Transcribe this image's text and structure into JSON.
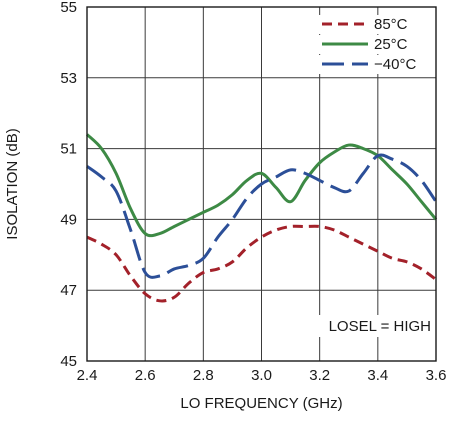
{
  "chart_data": {
    "type": "line",
    "title": "",
    "xlabel": "LO FREQUENCY (GHz)",
    "ylabel": "ISOLATION (dB)",
    "xlim": [
      2.4,
      3.6
    ],
    "ylim": [
      45,
      55
    ],
    "xticks": [
      "2.4",
      "2.6",
      "2.8",
      "3.0",
      "3.2",
      "3.4",
      "3.6"
    ],
    "yticks": [
      "45",
      "47",
      "49",
      "51",
      "53",
      "55"
    ],
    "grid": true,
    "legend_position": "top-right",
    "annotation": "LOSEL = HIGH",
    "series": [
      {
        "name": "85°C",
        "color": "#a3212a",
        "dash": "short-dash",
        "x": [
          2.4,
          2.45,
          2.5,
          2.55,
          2.6,
          2.65,
          2.7,
          2.75,
          2.8,
          2.85,
          2.9,
          2.95,
          3.0,
          3.05,
          3.1,
          3.15,
          3.2,
          3.25,
          3.3,
          3.35,
          3.4,
          3.45,
          3.5,
          3.55,
          3.6
        ],
        "y": [
          48.5,
          48.3,
          48.0,
          47.4,
          46.9,
          46.7,
          46.8,
          47.2,
          47.5,
          47.6,
          47.8,
          48.2,
          48.5,
          48.7,
          48.8,
          48.8,
          48.8,
          48.7,
          48.5,
          48.3,
          48.1,
          47.9,
          47.8,
          47.6,
          47.3
        ]
      },
      {
        "name": "25°C",
        "color": "#3d8a45",
        "dash": "solid",
        "x": [
          2.4,
          2.45,
          2.5,
          2.55,
          2.6,
          2.65,
          2.7,
          2.75,
          2.8,
          2.85,
          2.9,
          2.95,
          3.0,
          3.05,
          3.1,
          3.15,
          3.2,
          3.25,
          3.3,
          3.35,
          3.4,
          3.45,
          3.5,
          3.55,
          3.6
        ],
        "y": [
          51.4,
          51.0,
          50.3,
          49.3,
          48.6,
          48.6,
          48.8,
          49.0,
          49.2,
          49.4,
          49.7,
          50.1,
          50.3,
          49.9,
          49.5,
          50.1,
          50.6,
          50.9,
          51.1,
          51.0,
          50.8,
          50.4,
          50.0,
          49.5,
          49.0
        ]
      },
      {
        "name": "−40°C",
        "color": "#2c4f98",
        "dash": "long-dash",
        "x": [
          2.4,
          2.45,
          2.5,
          2.55,
          2.6,
          2.65,
          2.7,
          2.75,
          2.8,
          2.85,
          2.9,
          2.95,
          3.0,
          3.05,
          3.1,
          3.15,
          3.2,
          3.25,
          3.3,
          3.35,
          3.4,
          3.45,
          3.5,
          3.55,
          3.6
        ],
        "y": [
          50.5,
          50.2,
          49.8,
          48.7,
          47.5,
          47.4,
          47.6,
          47.7,
          47.9,
          48.5,
          49.0,
          49.6,
          50.0,
          50.2,
          50.4,
          50.3,
          50.1,
          49.9,
          49.8,
          50.3,
          50.8,
          50.7,
          50.5,
          50.1,
          49.5
        ]
      }
    ]
  }
}
